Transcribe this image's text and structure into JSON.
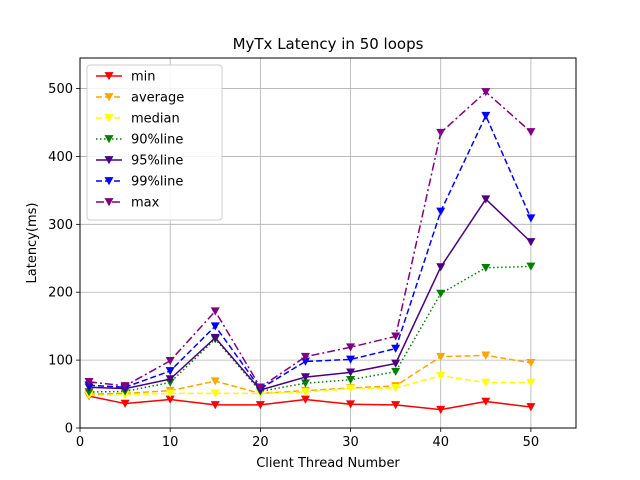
{
  "chart_data": {
    "type": "line",
    "title": "MyTx Latency in 50 loops",
    "xlabel": "Client Thread Number",
    "ylabel": "Latency(ms)",
    "xlim": [
      0,
      55
    ],
    "ylim": [
      0,
      545
    ],
    "xticks": [
      0,
      10,
      20,
      30,
      40,
      50
    ],
    "yticks": [
      0,
      100,
      200,
      300,
      400,
      500
    ],
    "grid": true,
    "legend_position": "top-left",
    "x": [
      1,
      5,
      10,
      15,
      20,
      25,
      30,
      35,
      40,
      45,
      50
    ],
    "series": [
      {
        "name": "min",
        "color": "#ff0000",
        "linestyle": "solid",
        "marker": "triangle-down",
        "values": [
          47,
          36,
          42,
          34,
          34,
          42,
          35,
          34,
          27,
          39,
          31
        ]
      },
      {
        "name": "average",
        "color": "#ffa500",
        "linestyle": "dashed",
        "marker": "triangle-down",
        "values": [
          50,
          51,
          55,
          69,
          51,
          55,
          59,
          62,
          105,
          107,
          96
        ]
      },
      {
        "name": "median",
        "color": "#ffff00",
        "linestyle": "dashed",
        "marker": "triangle-down",
        "values": [
          48,
          49,
          51,
          51,
          51,
          53,
          58,
          59,
          77,
          67,
          67
        ]
      },
      {
        "name": "90%line",
        "color": "#008000",
        "linestyle": "dotted",
        "marker": "triangle-down",
        "values": [
          53,
          54,
          67,
          131,
          54,
          66,
          71,
          83,
          198,
          236,
          238
        ]
      },
      {
        "name": "95%line",
        "color": "#4b0082",
        "linestyle": "solid",
        "marker": "triangle-down",
        "values": [
          60,
          58,
          72,
          133,
          56,
          75,
          82,
          95,
          237,
          337,
          274
        ]
      },
      {
        "name": "99%line",
        "color": "#0000ff",
        "linestyle": "dashed",
        "marker": "triangle-down",
        "values": [
          63,
          60,
          84,
          150,
          58,
          98,
          101,
          117,
          319,
          460,
          309
        ]
      },
      {
        "name": "max",
        "color": "#800080",
        "linestyle": "dashdot",
        "marker": "triangle-down",
        "values": [
          68,
          62,
          99,
          172,
          60,
          105,
          119,
          135,
          435,
          495,
          436
        ]
      }
    ]
  }
}
